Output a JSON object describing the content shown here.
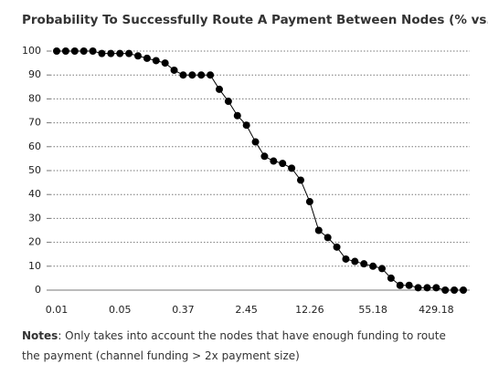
{
  "chart_data": {
    "type": "line",
    "title": "Probability To Successfully Route A Payment Between Nodes (% vs. USD)",
    "categories": [
      "0.01",
      null,
      null,
      null,
      null,
      null,
      null,
      "0.05",
      null,
      null,
      null,
      null,
      null,
      null,
      "0.37",
      null,
      null,
      null,
      null,
      null,
      null,
      "2.45",
      null,
      null,
      null,
      null,
      null,
      null,
      "12.26",
      null,
      null,
      null,
      null,
      null,
      null,
      "55.18",
      null,
      null,
      null,
      null,
      null,
      null,
      "429.18",
      null,
      null,
      null
    ],
    "series": [
      {
        "color": "#000000",
        "values": [
          100,
          100,
          100,
          100,
          100,
          99,
          99,
          99,
          99,
          98,
          97,
          96,
          95,
          92,
          90,
          90,
          90,
          90,
          84,
          79,
          73,
          69,
          62,
          56,
          54,
          53,
          51,
          46,
          37,
          25,
          22,
          18,
          13,
          12,
          11,
          10,
          9,
          5,
          2,
          2,
          1,
          1,
          1,
          0,
          0,
          0
        ]
      }
    ],
    "ylim": [
      0,
      100
    ],
    "yticks": [
      0,
      10,
      20,
      30,
      40,
      50,
      60,
      70,
      80,
      90,
      100
    ],
    "grid": true
  },
  "notes": {
    "label": "Notes",
    "text": ": Only takes into account the nodes that have enough funding to route the payment (channel funding > 2x payment size)"
  }
}
